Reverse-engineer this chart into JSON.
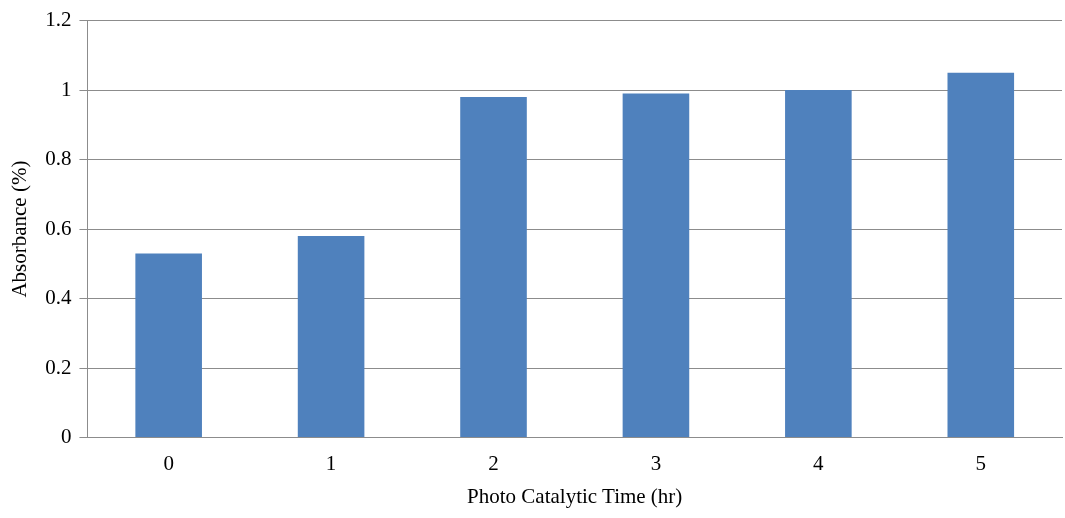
{
  "chart_data": {
    "type": "bar",
    "xlabel": "Photo Catalytic Time (hr)",
    "ylabel": "Absorbance (%)",
    "categories": [
      "0",
      "1",
      "2",
      "3",
      "4",
      "5"
    ],
    "values": [
      0.53,
      0.58,
      0.98,
      0.99,
      1.0,
      1.05
    ],
    "color": "#4f81bd",
    "ylim": [
      0,
      1.2
    ],
    "yticks": [
      0,
      0.2,
      0.4,
      0.6,
      0.8,
      1,
      1.2
    ],
    "grid": "y",
    "legend": false
  }
}
